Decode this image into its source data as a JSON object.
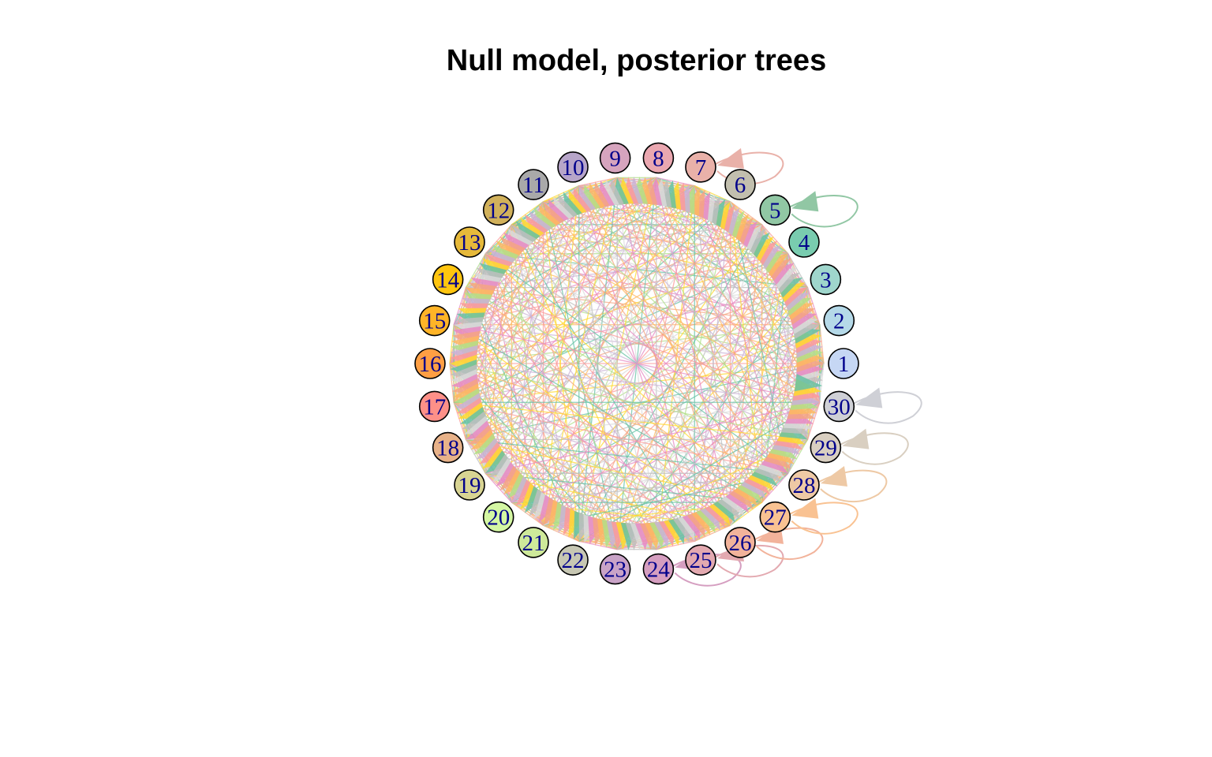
{
  "title": "Null model, posterior trees",
  "network": {
    "label_color": "#00008b",
    "node_border_color": "#000000",
    "edge_alpha": 0.75,
    "nodes": [
      {
        "id": "1",
        "color": "#c6d7f4"
      },
      {
        "id": "2",
        "color": "#b5d9e8"
      },
      {
        "id": "3",
        "color": "#9fd6cc"
      },
      {
        "id": "4",
        "color": "#79ccaf"
      },
      {
        "id": "5",
        "color": "#91c7a4"
      },
      {
        "id": "6",
        "color": "#c2bfae"
      },
      {
        "id": "7",
        "color": "#e9b1a9"
      },
      {
        "id": "8",
        "color": "#eaa7b0"
      },
      {
        "id": "9",
        "color": "#d6a4be"
      },
      {
        "id": "10",
        "color": "#b7a5c9"
      },
      {
        "id": "11",
        "color": "#a9a9a9"
      },
      {
        "id": "12",
        "color": "#d1b15b"
      },
      {
        "id": "13",
        "color": "#e6b93a"
      },
      {
        "id": "14",
        "color": "#ffc50f"
      },
      {
        "id": "15",
        "color": "#ffb427"
      },
      {
        "id": "16",
        "color": "#ff9f44"
      },
      {
        "id": "17",
        "color": "#fe9088"
      },
      {
        "id": "18",
        "color": "#e8b289"
      },
      {
        "id": "19",
        "color": "#d8d493"
      },
      {
        "id": "20",
        "color": "#d4f7a3"
      },
      {
        "id": "21",
        "color": "#cee99a"
      },
      {
        "id": "22",
        "color": "#c7c7b3"
      },
      {
        "id": "23",
        "color": "#c9a3c7"
      },
      {
        "id": "24",
        "color": "#d59ec0"
      },
      {
        "id": "25",
        "color": "#e3a9b0"
      },
      {
        "id": "26",
        "color": "#f2b39b"
      },
      {
        "id": "27",
        "color": "#f9c292"
      },
      {
        "id": "28",
        "color": "#eec9a5"
      },
      {
        "id": "29",
        "color": "#d9cfc1"
      },
      {
        "id": "30",
        "color": "#cfd0d6"
      }
    ],
    "self_loops": [
      "5",
      "7",
      "24",
      "25",
      "26",
      "27",
      "28",
      "29",
      "30"
    ],
    "edge_palette": [
      "#f4a582",
      "#fdb863",
      "#b2df8a",
      "#cab2d6",
      "#fb9a99",
      "#ffd92f",
      "#66c2a5",
      "#bebebe",
      "#d9d9d9",
      "#e78ac3"
    ]
  }
}
